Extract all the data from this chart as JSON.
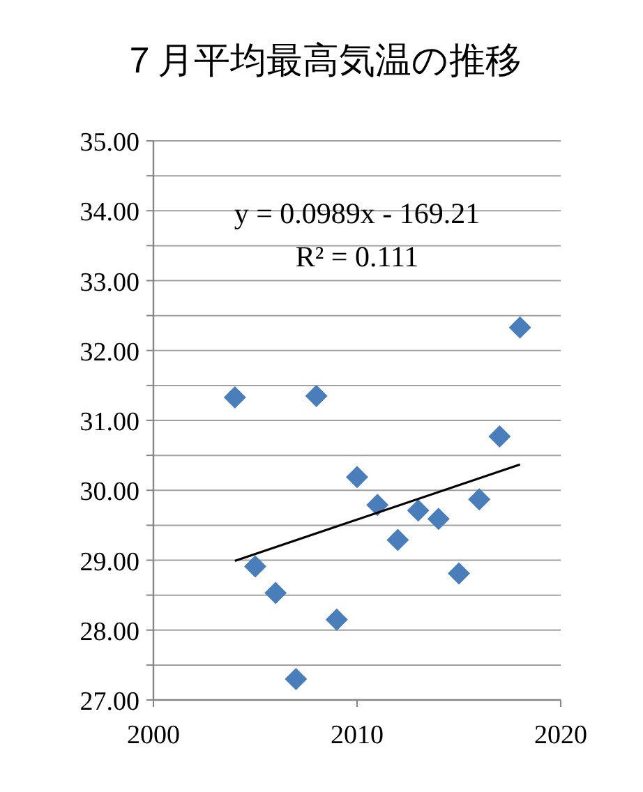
{
  "chart_data": {
    "type": "scatter",
    "title": "７月平均最高気温の推移",
    "x": [
      2004,
      2005,
      2006,
      2007,
      2008,
      2009,
      2010,
      2011,
      2012,
      2013,
      2014,
      2015,
      2016,
      2017,
      2018
    ],
    "series": [
      {
        "type": "scatter",
        "color": "#4a7ebb",
        "marker": "diamond",
        "values": [
          31.33,
          28.91,
          28.53,
          27.3,
          31.35,
          28.15,
          30.19,
          29.79,
          29.29,
          29.71,
          29.59,
          28.81,
          29.87,
          30.77,
          32.33
        ]
      },
      {
        "type": "line",
        "color": "#000000",
        "x": [
          2004,
          2018
        ],
        "values": [
          28.99,
          30.37
        ]
      }
    ],
    "xlim": [
      2000,
      2020
    ],
    "xticks": [
      2000,
      2010,
      2020
    ],
    "ylim": [
      27,
      35
    ],
    "yticks": [
      {
        "value": 27,
        "label": "27.00"
      },
      {
        "value": 27.5,
        "label": null
      },
      {
        "value": 28,
        "label": "28.00"
      },
      {
        "value": 28.5,
        "label": null
      },
      {
        "value": 29,
        "label": "29.00"
      },
      {
        "value": 29.5,
        "label": null
      },
      {
        "value": 30,
        "label": "30.00"
      },
      {
        "value": 30.5,
        "label": null
      },
      {
        "value": 31,
        "label": "31.00"
      },
      {
        "value": 31.5,
        "label": null
      },
      {
        "value": 32,
        "label": "32.00"
      },
      {
        "value": 32.5,
        "label": null
      },
      {
        "value": 33,
        "label": "33.00"
      },
      {
        "value": 33.5,
        "label": null
      },
      {
        "value": 34,
        "label": "34.00"
      },
      {
        "value": 34.5,
        "label": null
      },
      {
        "value": 35,
        "label": "35.00"
      }
    ],
    "grid": "y",
    "annotations": [
      "y = 0.0989x - 169.21",
      "R² = 0.111"
    ]
  }
}
